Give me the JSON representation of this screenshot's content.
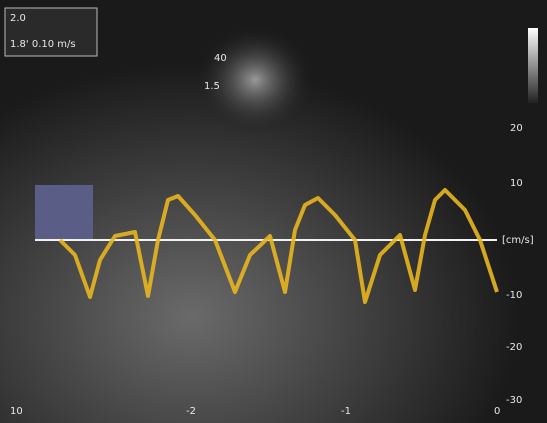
{
  "header": {
    "box_line1": "2.0",
    "box_line2": "1.8' 0.10 m/s"
  },
  "probe_labels": [
    "40",
    "1.5"
  ],
  "velocity_axis": {
    "ticks": [
      "20",
      "10",
      "[cm/s]",
      "-10",
      "-20",
      "-30"
    ]
  },
  "time_axis": {
    "ticks": [
      "-2",
      "-1",
      "0"
    ]
  },
  "footer": {
    "frame_rate": "10"
  }
}
